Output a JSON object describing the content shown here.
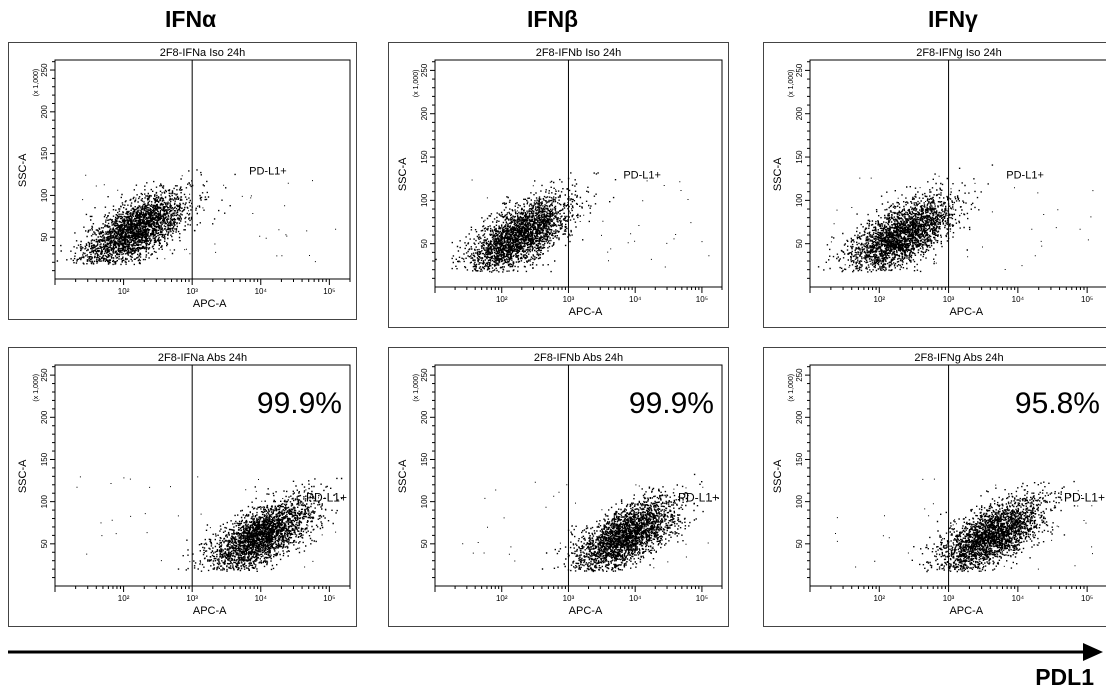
{
  "columns": [
    "IFNα",
    "IFNβ",
    "IFNγ"
  ],
  "axis_label": "PDL1",
  "common": {
    "x_label": "APC-A",
    "y_label": "SSC-A",
    "y_scale_label": "(x 1,000)",
    "gate_label": "PD-L1+",
    "x_ticks": [
      "10²",
      "10³",
      "10⁴",
      "10⁵"
    ],
    "y_ticks": [
      "50",
      "100",
      "150",
      "200",
      "250"
    ]
  },
  "chart_data": [
    {
      "type": "scatter",
      "title": "2F8-IFNa Iso 24h",
      "xlabel": "APC-A",
      "ylabel": "SSC-A",
      "xscale": "log",
      "xlim": [
        10,
        200000
      ],
      "ylim": [
        0,
        262
      ],
      "gate_xmin": 1000,
      "gate_label": "PD-L1+",
      "percent": null,
      "cluster": {
        "x_center": 150,
        "y_center": 60
      }
    },
    {
      "type": "scatter",
      "title": "2F8-IFNb Iso 24h",
      "xlabel": "APC-A",
      "ylabel": "SSC-A",
      "xscale": "log",
      "xlim": [
        10,
        200000
      ],
      "ylim": [
        0,
        262
      ],
      "gate_xmin": 1000,
      "gate_label": "PD-L1+",
      "percent": null,
      "cluster": {
        "x_center": 180,
        "y_center": 60
      }
    },
    {
      "type": "scatter",
      "title": "2F8-IFNg Iso 24h",
      "xlabel": "APC-A",
      "ylabel": "SSC-A",
      "xscale": "log",
      "xlim": [
        10,
        200000
      ],
      "ylim": [
        0,
        262
      ],
      "gate_xmin": 1000,
      "gate_label": "PD-L1+",
      "percent": null,
      "cluster": {
        "x_center": 200,
        "y_center": 60
      }
    },
    {
      "type": "scatter",
      "title": "2F8-IFNa Abs 24h",
      "xlabel": "APC-A",
      "ylabel": "SSC-A",
      "xscale": "log",
      "xlim": [
        10,
        200000
      ],
      "ylim": [
        0,
        262
      ],
      "gate_xmin": 1000,
      "gate_label": "PD-L1+",
      "percent": "99.9%",
      "cluster": {
        "x_center": 10000,
        "y_center": 60
      }
    },
    {
      "type": "scatter",
      "title": "2F8-IFNb Abs 24h",
      "xlabel": "APC-A",
      "ylabel": "SSC-A",
      "xscale": "log",
      "xlim": [
        10,
        200000
      ],
      "ylim": [
        0,
        262
      ],
      "gate_xmin": 1000,
      "gate_label": "PD-L1+",
      "percent": "99.9%",
      "cluster": {
        "x_center": 7000,
        "y_center": 60
      }
    },
    {
      "type": "scatter",
      "title": "2F8-IFNg Abs 24h",
      "xlabel": "APC-A",
      "ylabel": "SSC-A",
      "xscale": "log",
      "xlim": [
        10,
        200000
      ],
      "ylim": [
        0,
        262
      ],
      "gate_xmin": 1000,
      "gate_label": "PD-L1+",
      "percent": "95.8%",
      "cluster": {
        "x_center": 4000,
        "y_center": 60
      }
    }
  ]
}
